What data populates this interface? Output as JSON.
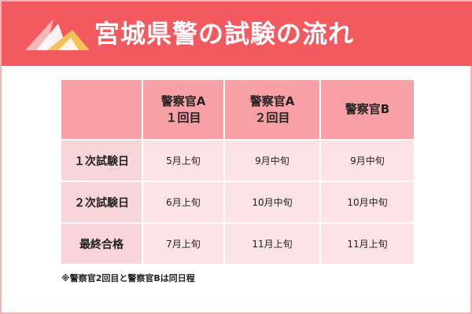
{
  "header": {
    "title": "宮城県警の試験の流れ"
  },
  "table": {
    "columns": [
      "",
      "警察官A\n１回目",
      "警察官A\n２回目",
      "警察官B"
    ],
    "rows": [
      {
        "label": "１次試験日",
        "values": [
          "5月上旬",
          "9月中旬",
          "9月中旬"
        ]
      },
      {
        "label": "２次試験日",
        "values": [
          "6月上旬",
          "10月中旬",
          "10月中旬"
        ]
      },
      {
        "label": "最終合格",
        "values": [
          "7月上旬",
          "11月上旬",
          "11月上旬"
        ]
      }
    ]
  },
  "note": "※警察官2回目と警察官Bは同日程",
  "colors": {
    "header_bg": "#f25a5f",
    "head_cell": "#f7a1a6",
    "label_cell": "#f8d5d8",
    "data_cell": "#fde3e5",
    "border": "#f3b5b6"
  }
}
